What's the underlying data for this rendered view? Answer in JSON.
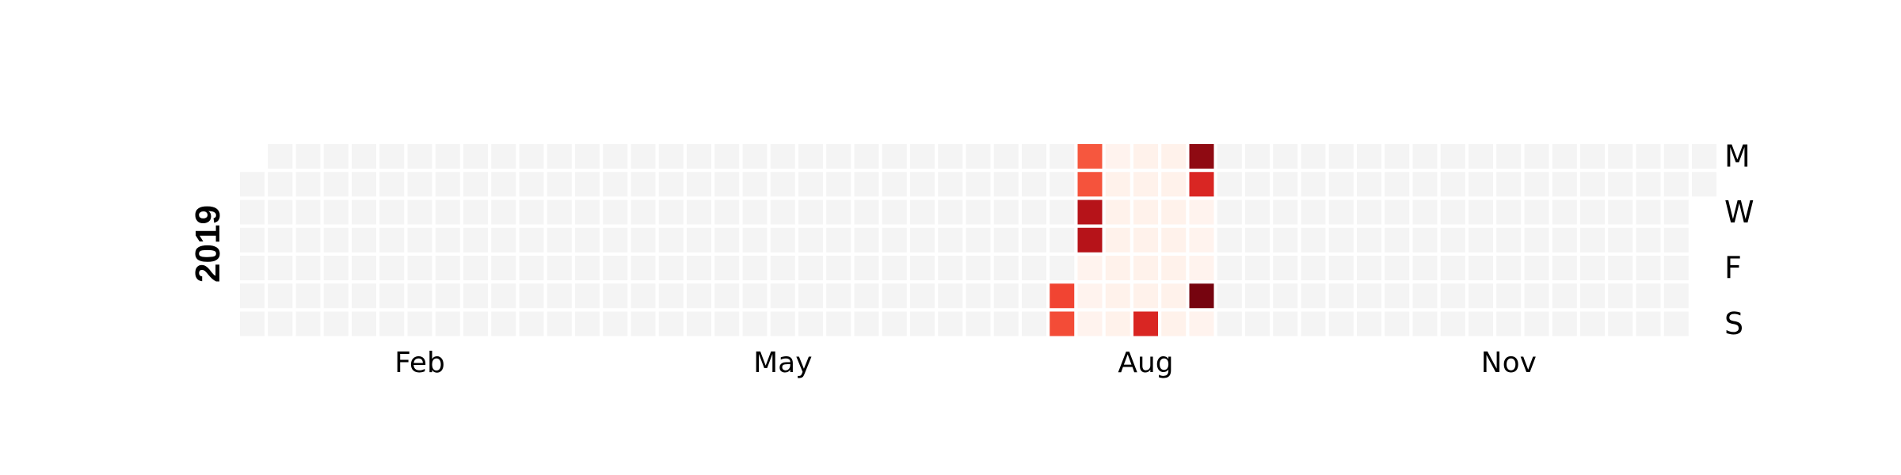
{
  "chart_data": {
    "type": "heatmap",
    "title": "",
    "year": "2019",
    "start_date": "2019-01-01",
    "end_date": "2019-12-31",
    "month_labels": [
      {
        "label": "Feb",
        "month": 2
      },
      {
        "label": "May",
        "month": 5
      },
      {
        "label": "Aug",
        "month": 8
      },
      {
        "label": "Nov",
        "month": 11
      }
    ],
    "day_labels": [
      {
        "label": "M",
        "weekday": 0
      },
      {
        "label": "W",
        "weekday": 2
      },
      {
        "label": "F",
        "weekday": 4
      },
      {
        "label": "S",
        "weekday": 6
      }
    ],
    "empty_color": "#f4f4f4",
    "colormap": "Reds",
    "colorscale": [
      "#fff5f0",
      "#fee0d2",
      "#fcbba1",
      "#fc9272",
      "#fb6a4a",
      "#ef3b2c",
      "#cb181d",
      "#a50f15",
      "#67000d"
    ],
    "value_range": [
      0,
      100
    ],
    "values": [
      {
        "date": "2019-07-27",
        "value": 60
      },
      {
        "date": "2019-07-28",
        "value": 58
      },
      {
        "date": "2019-07-29",
        "value": 55
      },
      {
        "date": "2019-07-30",
        "value": 56
      },
      {
        "date": "2019-07-31",
        "value": 82
      },
      {
        "date": "2019-08-01",
        "value": 82
      },
      {
        "date": "2019-08-02",
        "value": 1
      },
      {
        "date": "2019-08-03",
        "value": 1
      },
      {
        "date": "2019-08-04",
        "value": 1
      },
      {
        "date": "2019-08-05",
        "value": 1
      },
      {
        "date": "2019-08-06",
        "value": 2
      },
      {
        "date": "2019-08-07",
        "value": 2
      },
      {
        "date": "2019-08-08",
        "value": 2
      },
      {
        "date": "2019-08-09",
        "value": 2
      },
      {
        "date": "2019-08-10",
        "value": 2
      },
      {
        "date": "2019-08-11",
        "value": 2
      },
      {
        "date": "2019-08-12",
        "value": 2
      },
      {
        "date": "2019-08-13",
        "value": 2
      },
      {
        "date": "2019-08-14",
        "value": 2
      },
      {
        "date": "2019-08-15",
        "value": 2
      },
      {
        "date": "2019-08-16",
        "value": 2
      },
      {
        "date": "2019-08-17",
        "value": 2
      },
      {
        "date": "2019-08-18",
        "value": 70
      },
      {
        "date": "2019-08-19",
        "value": 2
      },
      {
        "date": "2019-08-20",
        "value": 2
      },
      {
        "date": "2019-08-21",
        "value": 2
      },
      {
        "date": "2019-08-22",
        "value": 2
      },
      {
        "date": "2019-08-23",
        "value": 2
      },
      {
        "date": "2019-08-24",
        "value": 2
      },
      {
        "date": "2019-08-25",
        "value": 2
      },
      {
        "date": "2019-08-26",
        "value": 92
      },
      {
        "date": "2019-08-27",
        "value": 70
      },
      {
        "date": "2019-08-28",
        "value": 1
      },
      {
        "date": "2019-08-29",
        "value": 1
      },
      {
        "date": "2019-08-30",
        "value": 1
      },
      {
        "date": "2019-08-31",
        "value": 97
      },
      {
        "date": "2019-09-01",
        "value": 1
      }
    ]
  }
}
